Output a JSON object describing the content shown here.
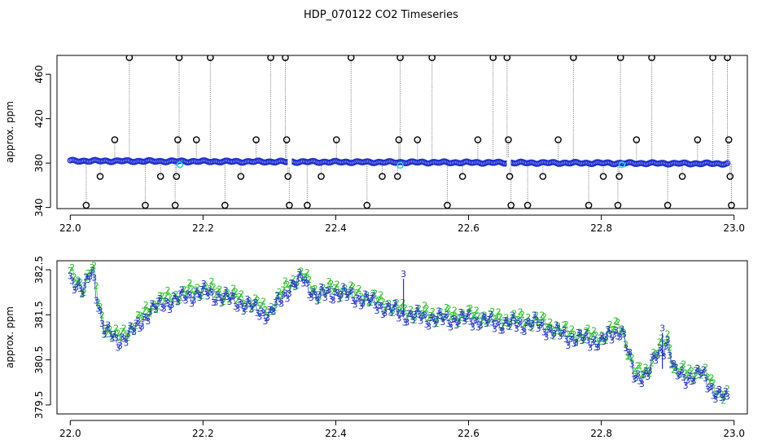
{
  "title": "HDP_070122  CO2 Timeseries",
  "colors": {
    "frame": "#000000",
    "blue": "#1f2fd0",
    "cyan": "#22d6e6",
    "green": "#22c022",
    "gray": "#8a8a8a"
  },
  "chart_data": [
    {
      "type": "scatter",
      "title": "",
      "xlabel": "",
      "ylabel": "approx. ppm",
      "xlim": [
        21.98,
        23.02
      ],
      "ylim": [
        339,
        477
      ],
      "xticks": [
        22.0,
        22.2,
        22.4,
        22.6,
        22.8,
        23.0
      ],
      "xticklabels": [
        "22.0",
        "22.2",
        "22.4",
        "22.6",
        "22.8",
        "23.0"
      ],
      "yticks": [
        340,
        380,
        420,
        460
      ],
      "yticklabels": [
        "340",
        "380",
        "420",
        "460"
      ],
      "grid": false,
      "marker_colors": {
        "main": "#1f2fd0",
        "flagged": "#22d6e6",
        "outlier": "#000000"
      },
      "main_series": {
        "x_start": 22.0,
        "x_end": 22.99,
        "y_start": 382.0,
        "y_end": 379.5,
        "gap_x": [
          22.33,
          22.66
        ]
      },
      "flagged_points": [
        {
          "x": 22.165,
          "y": 378.5
        },
        {
          "x": 22.497,
          "y": 378.0
        },
        {
          "x": 22.831,
          "y": 378.5
        }
      ],
      "outlier_points": [
        {
          "x": 22.024,
          "y": 342
        },
        {
          "x": 22.045,
          "y": 368
        },
        {
          "x": 22.067,
          "y": 401
        },
        {
          "x": 22.089,
          "y": 475
        },
        {
          "x": 22.113,
          "y": 342
        },
        {
          "x": 22.136,
          "y": 368
        },
        {
          "x": 22.158,
          "y": 342
        },
        {
          "x": 22.16,
          "y": 368
        },
        {
          "x": 22.162,
          "y": 401
        },
        {
          "x": 22.164,
          "y": 475
        },
        {
          "x": 22.19,
          "y": 401
        },
        {
          "x": 22.211,
          "y": 475
        },
        {
          "x": 22.233,
          "y": 342
        },
        {
          "x": 22.257,
          "y": 368
        },
        {
          "x": 22.28,
          "y": 401
        },
        {
          "x": 22.302,
          "y": 475
        },
        {
          "x": 22.324,
          "y": 475
        },
        {
          "x": 22.326,
          "y": 401
        },
        {
          "x": 22.328,
          "y": 368
        },
        {
          "x": 22.33,
          "y": 342
        },
        {
          "x": 22.357,
          "y": 342
        },
        {
          "x": 22.378,
          "y": 368
        },
        {
          "x": 22.401,
          "y": 401
        },
        {
          "x": 22.423,
          "y": 475
        },
        {
          "x": 22.447,
          "y": 342
        },
        {
          "x": 22.47,
          "y": 368
        },
        {
          "x": 22.493,
          "y": 368
        },
        {
          "x": 22.495,
          "y": 401
        },
        {
          "x": 22.497,
          "y": 475
        },
        {
          "x": 22.523,
          "y": 401
        },
        {
          "x": 22.545,
          "y": 475
        },
        {
          "x": 22.568,
          "y": 342
        },
        {
          "x": 22.591,
          "y": 368
        },
        {
          "x": 22.614,
          "y": 401
        },
        {
          "x": 22.637,
          "y": 475
        },
        {
          "x": 22.658,
          "y": 475
        },
        {
          "x": 22.66,
          "y": 401
        },
        {
          "x": 22.662,
          "y": 368
        },
        {
          "x": 22.664,
          "y": 342
        },
        {
          "x": 22.689,
          "y": 342
        },
        {
          "x": 22.712,
          "y": 368
        },
        {
          "x": 22.735,
          "y": 401
        },
        {
          "x": 22.758,
          "y": 475
        },
        {
          "x": 22.781,
          "y": 342
        },
        {
          "x": 22.803,
          "y": 368
        },
        {
          "x": 22.825,
          "y": 342
        },
        {
          "x": 22.827,
          "y": 368
        },
        {
          "x": 22.829,
          "y": 475
        },
        {
          "x": 22.853,
          "y": 401
        },
        {
          "x": 22.876,
          "y": 475
        },
        {
          "x": 22.9,
          "y": 342
        },
        {
          "x": 22.922,
          "y": 368
        },
        {
          "x": 22.945,
          "y": 401
        },
        {
          "x": 22.968,
          "y": 475
        },
        {
          "x": 22.99,
          "y": 475
        },
        {
          "x": 22.992,
          "y": 401
        },
        {
          "x": 22.994,
          "y": 368
        },
        {
          "x": 22.996,
          "y": 342
        }
      ]
    },
    {
      "type": "scatter",
      "title": "",
      "xlabel": "",
      "ylabel": "approx. ppm",
      "xlim": [
        21.98,
        23.02
      ],
      "ylim": [
        379.3,
        382.7
      ],
      "xticks": [
        22.0,
        22.2,
        22.4,
        22.6,
        22.8,
        23.0
      ],
      "xticklabels": [
        "22.0",
        "22.2",
        "22.4",
        "22.6",
        "22.8",
        "23.0"
      ],
      "yticks": [
        379.5,
        380.5,
        381.5,
        382.5
      ],
      "yticklabels": [
        "379.5",
        "380.5",
        "381.5",
        "382.5"
      ],
      "grid": false,
      "series": [
        {
          "marker": "2",
          "color": "#22c022",
          "offset": 0.1,
          "x": [
            22.0,
            22.01,
            22.02,
            22.03,
            22.035,
            22.04,
            22.05,
            22.07,
            22.09,
            22.1,
            22.12,
            22.15,
            22.2,
            22.25,
            22.3,
            22.33,
            22.35,
            22.37,
            22.4,
            22.45,
            22.5,
            22.55,
            22.6,
            22.65,
            22.7,
            22.75,
            22.8,
            22.83,
            22.85,
            22.87,
            22.88,
            22.9,
            22.91,
            22.93,
            22.95,
            22.97,
            22.99
          ],
          "y": [
            382.3,
            382.2,
            382.0,
            382.4,
            382.4,
            381.9,
            381.2,
            380.9,
            381.1,
            381.2,
            381.6,
            381.8,
            382.0,
            381.8,
            381.5,
            382.1,
            382.3,
            381.9,
            382.0,
            381.8,
            381.5,
            381.4,
            381.4,
            381.3,
            381.3,
            381.0,
            380.9,
            381.2,
            380.1,
            380.2,
            380.5,
            380.9,
            380.2,
            380.1,
            380.2,
            379.8,
            379.6
          ]
        },
        {
          "marker": "3",
          "color": "#1f2fd0",
          "offset": 0.0,
          "x": [
            22.0,
            22.01,
            22.02,
            22.03,
            22.035,
            22.04,
            22.05,
            22.07,
            22.09,
            22.1,
            22.12,
            22.15,
            22.2,
            22.25,
            22.3,
            22.33,
            22.35,
            22.37,
            22.4,
            22.45,
            22.5,
            22.55,
            22.6,
            22.65,
            22.7,
            22.75,
            22.8,
            22.83,
            22.85,
            22.87,
            22.88,
            22.9,
            22.91,
            22.93,
            22.95,
            22.97,
            22.99
          ],
          "y": [
            382.3,
            382.2,
            382.0,
            382.4,
            382.4,
            381.9,
            381.2,
            380.9,
            381.1,
            381.2,
            381.6,
            381.8,
            382.0,
            381.8,
            381.5,
            382.1,
            382.3,
            381.9,
            382.0,
            381.8,
            381.5,
            381.4,
            381.4,
            381.3,
            381.3,
            381.0,
            380.9,
            381.2,
            380.1,
            380.2,
            380.5,
            380.9,
            380.2,
            380.1,
            380.2,
            379.8,
            379.6
          ]
        }
      ],
      "spikes": [
        {
          "x": 22.502,
          "y": 382.3
        },
        {
          "x": 22.892,
          "y": 381.1
        }
      ]
    }
  ]
}
